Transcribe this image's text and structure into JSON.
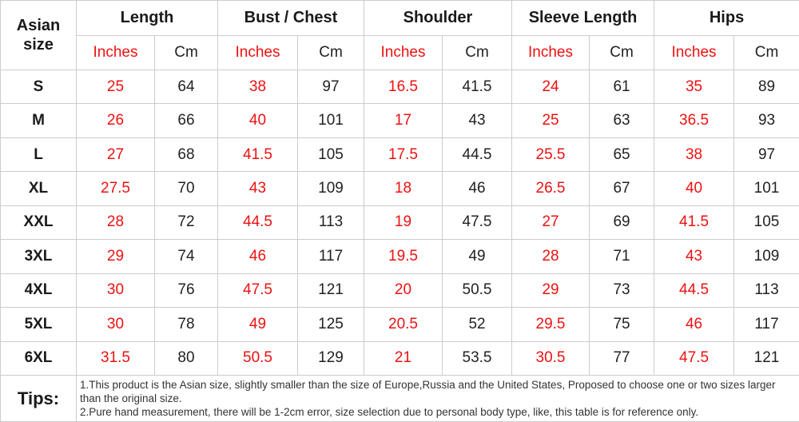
{
  "page": {
    "background": "#ffffff"
  },
  "colors": {
    "accent_red": "#ee1111",
    "text_dark": "#222222",
    "grid_line": "#cccccc"
  },
  "table": {
    "corner_header": "Asian size",
    "groups": [
      {
        "label": "Length"
      },
      {
        "label": "Bust / Chest"
      },
      {
        "label": "Shoulder"
      },
      {
        "label": "Sleeve Length"
      },
      {
        "label": "Hips"
      }
    ],
    "unit_headers": {
      "inches": "Inches",
      "cm": "Cm"
    },
    "rows": [
      {
        "size": "S",
        "values": [
          "25",
          "64",
          "38",
          "97",
          "16.5",
          "41.5",
          "24",
          "61",
          "35",
          "89"
        ]
      },
      {
        "size": "M",
        "values": [
          "26",
          "66",
          "40",
          "101",
          "17",
          "43",
          "25",
          "63",
          "36.5",
          "93"
        ]
      },
      {
        "size": "L",
        "values": [
          "27",
          "68",
          "41.5",
          "105",
          "17.5",
          "44.5",
          "25.5",
          "65",
          "38",
          "97"
        ]
      },
      {
        "size": "XL",
        "values": [
          "27.5",
          "70",
          "43",
          "109",
          "18",
          "46",
          "26.5",
          "67",
          "40",
          "101"
        ]
      },
      {
        "size": "XXL",
        "values": [
          "28",
          "72",
          "44.5",
          "113",
          "19",
          "47.5",
          "27",
          "69",
          "41.5",
          "105"
        ]
      },
      {
        "size": "3XL",
        "values": [
          "29",
          "74",
          "46",
          "117",
          "19.5",
          "49",
          "28",
          "71",
          "43",
          "109"
        ]
      },
      {
        "size": "4XL",
        "values": [
          "30",
          "76",
          "47.5",
          "121",
          "20",
          "50.5",
          "29",
          "73",
          "44.5",
          "113"
        ]
      },
      {
        "size": "5XL",
        "values": [
          "30",
          "78",
          "49",
          "125",
          "20.5",
          "52",
          "29.5",
          "75",
          "46",
          "117"
        ]
      },
      {
        "size": "6XL",
        "values": [
          "31.5",
          "80",
          "50.5",
          "129",
          "21",
          "53.5",
          "30.5",
          "77",
          "47.5",
          "121"
        ]
      }
    ],
    "tips": {
      "label": "Tips:",
      "lines": [
        "1.This product is the Asian size, slightly smaller than the size of Europe,Russia and the United States, Proposed to choose one or two sizes larger than the original size.",
        "2.Pure hand measurement, there will be 1-2cm error, size selection due to personal body type, like, this table is for reference only."
      ]
    }
  },
  "chart_data": {
    "type": "table",
    "title": "Asian size garment measurement chart",
    "columns": [
      "Asian size",
      "Length (Inches)",
      "Length (Cm)",
      "Bust / Chest (Inches)",
      "Bust / Chest (Cm)",
      "Shoulder (Inches)",
      "Shoulder (Cm)",
      "Sleeve Length (Inches)",
      "Sleeve Length (Cm)",
      "Hips (Inches)",
      "Hips (Cm)"
    ],
    "rows": [
      [
        "S",
        25,
        64,
        38,
        97,
        16.5,
        41.5,
        24,
        61,
        35,
        89
      ],
      [
        "M",
        26,
        66,
        40,
        101,
        17,
        43,
        25,
        63,
        36.5,
        93
      ],
      [
        "L",
        27,
        68,
        41.5,
        105,
        17.5,
        44.5,
        25.5,
        65,
        38,
        97
      ],
      [
        "XL",
        27.5,
        70,
        43,
        109,
        18,
        46,
        26.5,
        67,
        40,
        101
      ],
      [
        "XXL",
        28,
        72,
        44.5,
        113,
        19,
        47.5,
        27,
        69,
        41.5,
        105
      ],
      [
        "3XL",
        29,
        74,
        46,
        117,
        19.5,
        49,
        28,
        71,
        43,
        109
      ],
      [
        "4XL",
        30,
        76,
        47.5,
        121,
        20,
        50.5,
        29,
        73,
        44.5,
        113
      ],
      [
        "5XL",
        30,
        78,
        49,
        125,
        20.5,
        52,
        29.5,
        75,
        46,
        117
      ],
      [
        "6XL",
        31.5,
        80,
        50.5,
        129,
        21,
        53.5,
        30.5,
        77,
        47.5,
        121
      ]
    ],
    "notes": [
      "1.This product is the Asian size, slightly smaller than the size of Europe,Russia and the United States, Proposed to choose one or two sizes larger than the original size.",
      "2.Pure hand measurement, there will be 1-2cm error, size selection due to personal body type, like, this table is for reference only."
    ]
  }
}
